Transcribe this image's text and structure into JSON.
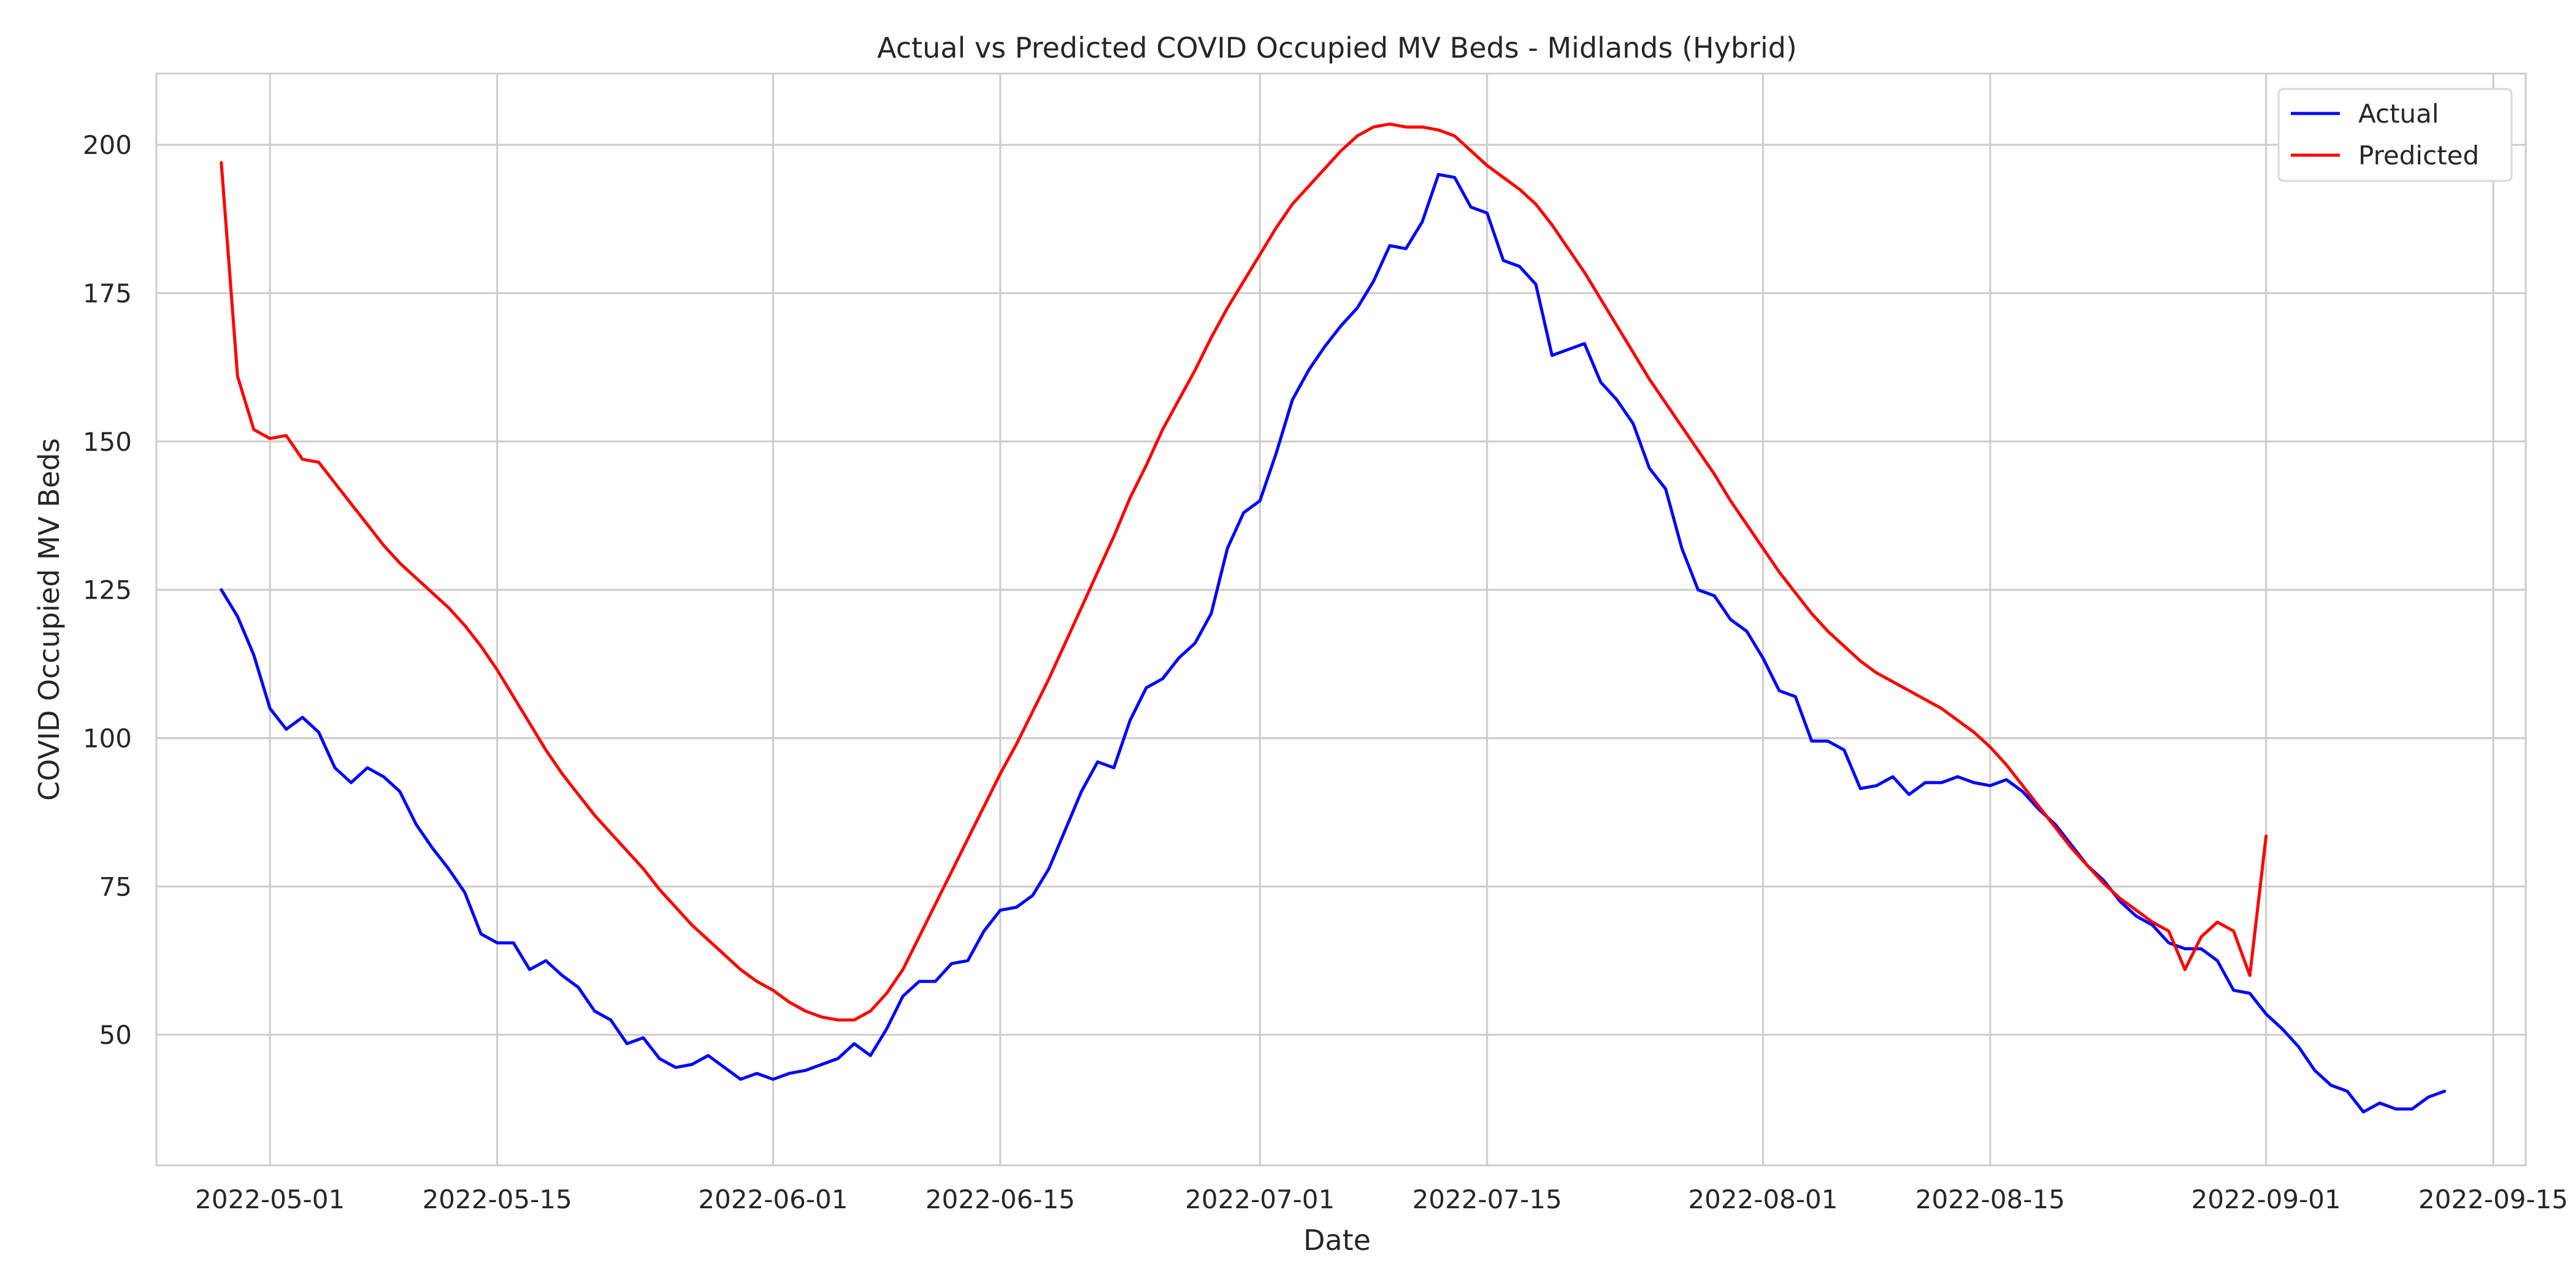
{
  "chart_data": {
    "type": "line",
    "title": "Actual vs Predicted COVID Occupied MV Beds - Midlands (Hybrid)",
    "xlabel": "Date",
    "ylabel": "COVID Occupied MV Beds",
    "x_start": "2022-04-28",
    "x_step_days": 1,
    "xlim": [
      "2022-04-24",
      "2022-09-17"
    ],
    "ylim": [
      28,
      212
    ],
    "x_ticks": [
      "2022-05-01",
      "2022-05-15",
      "2022-06-01",
      "2022-06-15",
      "2022-07-01",
      "2022-07-15",
      "2022-08-01",
      "2022-08-15",
      "2022-09-01",
      "2022-09-15"
    ],
    "y_ticks": [
      50,
      75,
      100,
      125,
      150,
      175,
      200
    ],
    "grid": true,
    "legend_position": "top-right",
    "series": [
      {
        "name": "Actual",
        "color": "#0000ff",
        "values": [
          125,
          120.5,
          114,
          105,
          101.5,
          103.5,
          101,
          95,
          92.5,
          95,
          93.5,
          91,
          85.5,
          81.5,
          78,
          74,
          67,
          65.5,
          65.5,
          61,
          62.5,
          60,
          58,
          54,
          52.5,
          48.5,
          49.5,
          46,
          44.5,
          45,
          46.5,
          44.5,
          42.5,
          43.5,
          42.5,
          43.5,
          44,
          45,
          46,
          48.5,
          46.5,
          51,
          56.5,
          59,
          59,
          62,
          62.5,
          67.5,
          71,
          71.5,
          73.5,
          78,
          84.5,
          91,
          96,
          95,
          103,
          108.5,
          110,
          113.5,
          116,
          121,
          132,
          138,
          140,
          148,
          157,
          162,
          166,
          169.5,
          172.5,
          177,
          183,
          182.5,
          187,
          195,
          194.5,
          189.5,
          188.5,
          180.5,
          179.5,
          176.5,
          164.5,
          165.5,
          166.5,
          160,
          157,
          153,
          145.5,
          142,
          132,
          125,
          124,
          120,
          118,
          113.5,
          108,
          107,
          99.5,
          99.5,
          98,
          91.5,
          92,
          93.5,
          90.5,
          92.5,
          92.5,
          93.5,
          92.5,
          92,
          93,
          91,
          88,
          85.5,
          82,
          78.5,
          76,
          72.5,
          70,
          68.5,
          65.5,
          64.5,
          64.5,
          62.5,
          57.5,
          57,
          53.5,
          51,
          48,
          44,
          41.5,
          40.5,
          37,
          38.5,
          37.5,
          37.5,
          39.5,
          40.5
        ]
      },
      {
        "name": "Predicted",
        "color": "#ff0000",
        "values": [
          197,
          161,
          152,
          150.5,
          151,
          147,
          146.5,
          143,
          139.5,
          136,
          132.5,
          129.5,
          127,
          124.5,
          122,
          119,
          115.5,
          111.5,
          107,
          102.5,
          98,
          94,
          90.5,
          87,
          84,
          81,
          78,
          74.5,
          71.5,
          68.5,
          66,
          63.5,
          61,
          59,
          57.5,
          55.5,
          54,
          53,
          52.5,
          52.5,
          54,
          57,
          61,
          66.5,
          72,
          77.5,
          83,
          88.5,
          94,
          99,
          104.5,
          110,
          116,
          122,
          128,
          134,
          140.5,
          146,
          152,
          157,
          162,
          167.5,
          172.5,
          177,
          181.5,
          186,
          190,
          193,
          196,
          199,
          201.5,
          203,
          203.5,
          203,
          203,
          202.5,
          201.5,
          199,
          196.5,
          194.5,
          192.5,
          190,
          186.5,
          182.5,
          178.5,
          174,
          169.5,
          165,
          160.5,
          156.5,
          152.5,
          148.5,
          144.5,
          140,
          136,
          132,
          128,
          124.5,
          121,
          118,
          115.5,
          113,
          111,
          109.5,
          108,
          106.5,
          105,
          103,
          101,
          98.5,
          95.5,
          92,
          88.5,
          85,
          81.5,
          78.5,
          75.5,
          73,
          71,
          69,
          67.5,
          61,
          66.5,
          69,
          67.5,
          60,
          83.5
        ]
      }
    ]
  }
}
